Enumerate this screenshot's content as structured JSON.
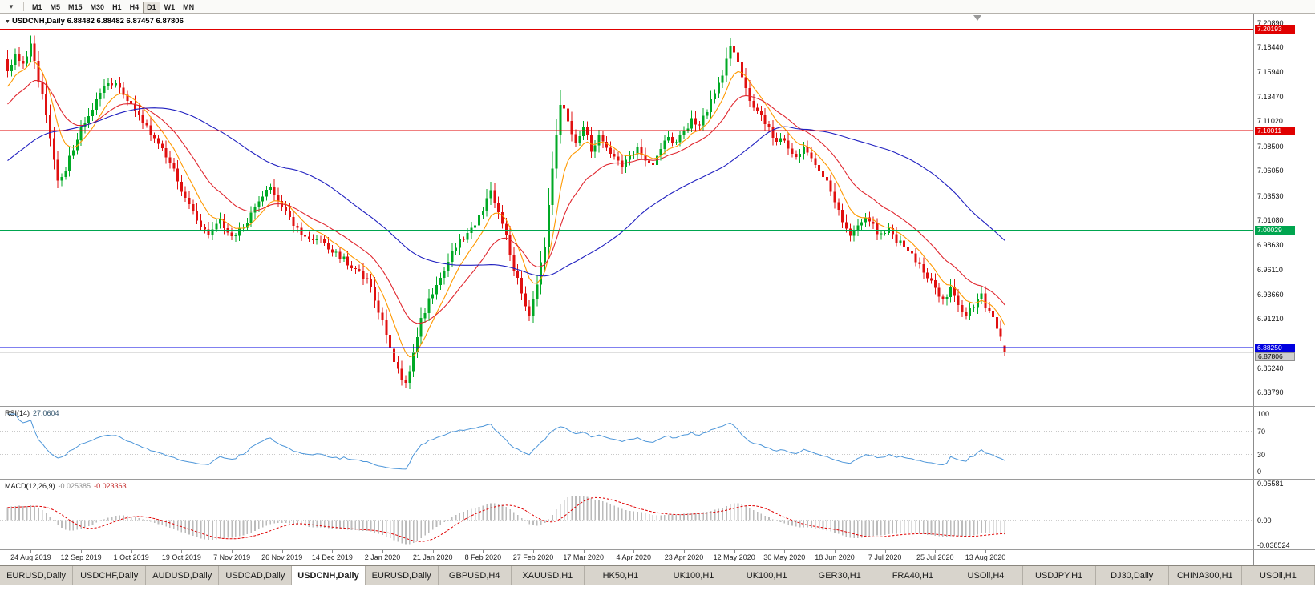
{
  "toolbar": {
    "chart_selector_icon": "▾",
    "timeframes": [
      "M1",
      "M5",
      "M15",
      "M30",
      "H1",
      "H4",
      "D1",
      "W1",
      "MN"
    ],
    "active_timeframe": "D1"
  },
  "chart_data": {
    "type": "candlestick",
    "symbol": "USDCNH",
    "timeframe": "Daily",
    "title": "USDCNH,Daily",
    "marker_icon": "▼",
    "ohlc_text": "6.88482 6.88482 6.87457 6.87806",
    "last_candle": {
      "open": 6.88482,
      "high": 6.88482,
      "low": 6.87457,
      "close": 6.87806
    },
    "price_range": [
      6.8242,
      7.2177
    ],
    "price_axis_ticks": [
      "7.20890",
      "7.18440",
      "7.15940",
      "7.13470",
      "7.11020",
      "7.08500",
      "7.06050",
      "7.03530",
      "7.01080",
      "6.98630",
      "6.96110",
      "6.93660",
      "6.91210",
      "6.86240",
      "6.83790"
    ],
    "hlines": [
      {
        "price": 7.20193,
        "label": "7.20193",
        "color": "#e00000"
      },
      {
        "price": 7.10011,
        "label": "7.10011",
        "color": "#e00000"
      },
      {
        "price": 7.00029,
        "label": "7.00029",
        "color": "#00a54f"
      },
      {
        "price": 6.8825,
        "label": "6.88250",
        "color": "#0000e0"
      }
    ],
    "bid_line": {
      "price": 6.87806,
      "label": "6.87806",
      "color": "#bfbfbf"
    },
    "candle_count": 259,
    "date_labels": [
      "24 Aug 2019",
      "12 Sep 2019",
      "1 Oct 2019",
      "19 Oct 2019",
      "7 Nov 2019",
      "26 Nov 2019",
      "14 Dec 2019",
      "2 Jan 2020",
      "21 Jan 2020",
      "8 Feb 2020",
      "27 Feb 2020",
      "17 Mar 2020",
      "4 Apr 2020",
      "23 Apr 2020",
      "12 May 2020",
      "30 May 2020",
      "18 Jun 2020",
      "7 Jul 2020",
      "25 Jul 2020",
      "13 Aug 2020"
    ],
    "close_anchors": [
      [
        0,
        7.158
      ],
      [
        2,
        7.176
      ],
      [
        4,
        7.168
      ],
      [
        6,
        7.186
      ],
      [
        8,
        7.15
      ],
      [
        10,
        7.118
      ],
      [
        13,
        7.05
      ],
      [
        15,
        7.062
      ],
      [
        17,
        7.082
      ],
      [
        19,
        7.105
      ],
      [
        22,
        7.122
      ],
      [
        25,
        7.142
      ],
      [
        28,
        7.15
      ],
      [
        31,
        7.132
      ],
      [
        34,
        7.118
      ],
      [
        37,
        7.096
      ],
      [
        40,
        7.08
      ],
      [
        43,
        7.06
      ],
      [
        46,
        7.034
      ],
      [
        49,
        7.012
      ],
      [
        52,
        6.996
      ],
      [
        55,
        7.008
      ],
      [
        58,
        6.992
      ],
      [
        61,
        7.006
      ],
      [
        64,
        7.022
      ],
      [
        66,
        7.034
      ],
      [
        68,
        7.042
      ],
      [
        70,
        7.028
      ],
      [
        73,
        7.012
      ],
      [
        76,
        6.998
      ],
      [
        79,
        6.992
      ],
      [
        82,
        6.986
      ],
      [
        85,
        6.976
      ],
      [
        88,
        6.968
      ],
      [
        91,
        6.958
      ],
      [
        94,
        6.944
      ],
      [
        97,
        6.908
      ],
      [
        99,
        6.882
      ],
      [
        101,
        6.858
      ],
      [
        103,
        6.846
      ],
      [
        105,
        6.878
      ],
      [
        107,
        6.912
      ],
      [
        110,
        6.938
      ],
      [
        113,
        6.962
      ],
      [
        116,
        6.986
      ],
      [
        119,
        6.998
      ],
      [
        121,
        7.008
      ],
      [
        123,
        7.022
      ],
      [
        125,
        7.038
      ],
      [
        127,
        7.02
      ],
      [
        129,
        6.996
      ],
      [
        131,
        6.962
      ],
      [
        133,
        6.938
      ],
      [
        135,
        6.916
      ],
      [
        137,
        6.946
      ],
      [
        139,
        6.984
      ],
      [
        141,
        7.062
      ],
      [
        143,
        7.128
      ],
      [
        145,
        7.112
      ],
      [
        147,
        7.088
      ],
      [
        149,
        7.104
      ],
      [
        151,
        7.082
      ],
      [
        153,
        7.094
      ],
      [
        155,
        7.086
      ],
      [
        157,
        7.072
      ],
      [
        159,
        7.062
      ],
      [
        161,
        7.076
      ],
      [
        163,
        7.082
      ],
      [
        165,
        7.07
      ],
      [
        167,
        7.066
      ],
      [
        169,
        7.08
      ],
      [
        171,
        7.094
      ],
      [
        173,
        7.086
      ],
      [
        175,
        7.1
      ],
      [
        177,
        7.112
      ],
      [
        179,
        7.106
      ],
      [
        181,
        7.122
      ],
      [
        183,
        7.136
      ],
      [
        185,
        7.156
      ],
      [
        187,
        7.185
      ],
      [
        188,
        7.178
      ],
      [
        190,
        7.155
      ],
      [
        192,
        7.128
      ],
      [
        194,
        7.118
      ],
      [
        196,
        7.108
      ],
      [
        198,
        7.094
      ],
      [
        200,
        7.09
      ],
      [
        202,
        7.084
      ],
      [
        204,
        7.076
      ],
      [
        206,
        7.082
      ],
      [
        208,
        7.07
      ],
      [
        210,
        7.058
      ],
      [
        212,
        7.048
      ],
      [
        214,
        7.028
      ],
      [
        216,
        7.008
      ],
      [
        218,
        6.998
      ],
      [
        220,
        7.006
      ],
      [
        222,
        7.016
      ],
      [
        224,
        7.004
      ],
      [
        226,
        6.994
      ],
      [
        228,
        7.0
      ],
      [
        230,
        6.99
      ],
      [
        232,
        6.986
      ],
      [
        234,
        6.976
      ],
      [
        236,
        6.964
      ],
      [
        238,
        6.954
      ],
      [
        240,
        6.944
      ],
      [
        242,
        6.93
      ],
      [
        244,
        6.942
      ],
      [
        246,
        6.926
      ],
      [
        248,
        6.916
      ],
      [
        250,
        6.924
      ],
      [
        252,
        6.934
      ],
      [
        254,
        6.918
      ],
      [
        256,
        6.902
      ],
      [
        257,
        6.892
      ],
      [
        258,
        6.87806
      ]
    ],
    "prehistory": {
      "bars": 60,
      "from": 6.985,
      "to": 7.15
    },
    "colors": {
      "up": "#00a925",
      "down": "#e01010"
    },
    "moving_averages": [
      {
        "name": "ma-fast",
        "period": 8,
        "type": "ema",
        "color": "#ff9900"
      },
      {
        "name": "ma-mid",
        "period": 20,
        "type": "ema",
        "color": "#e0262e"
      },
      {
        "name": "ma-slow",
        "period": 60,
        "type": "sma",
        "color": "#2020c0"
      }
    ]
  },
  "rsi": {
    "label": "RSI(14)",
    "value": "27.0604",
    "axis_ticks": [
      "100",
      "70",
      "30",
      "0"
    ],
    "levels": [
      70,
      30
    ],
    "range": [
      -12,
      112
    ],
    "line_color": "#4d96d9"
  },
  "macd": {
    "label": "MACD(12,26,9)",
    "main_value": "-0.025385",
    "signal_value": "-0.023363",
    "axis_ticks": [
      "0.05581",
      "0.00",
      "-0.038524"
    ],
    "range": [
      -0.0446,
      0.0619
    ],
    "fast": 12,
    "slow": 26,
    "signal": 9,
    "histogram_color": "#bbbbbb",
    "signal_color": "#e00000"
  },
  "tabs": {
    "active_index": 4,
    "items": [
      "EURUSD,Daily",
      "USDCHF,Daily",
      "AUDUSD,Daily",
      "USDCAD,Daily",
      "USDCNH,Daily",
      "EURUSD,Daily",
      "GBPUSD,H4",
      "XAUUSD,H1",
      "HK50,H1",
      "UK100,H1",
      "UK100,H1",
      "GER30,H1",
      "FRA40,H1",
      "USOil,H4",
      "USDJPY,H1",
      "DJ30,Daily",
      "CHINA300,H1",
      "USOil,H1"
    ]
  }
}
